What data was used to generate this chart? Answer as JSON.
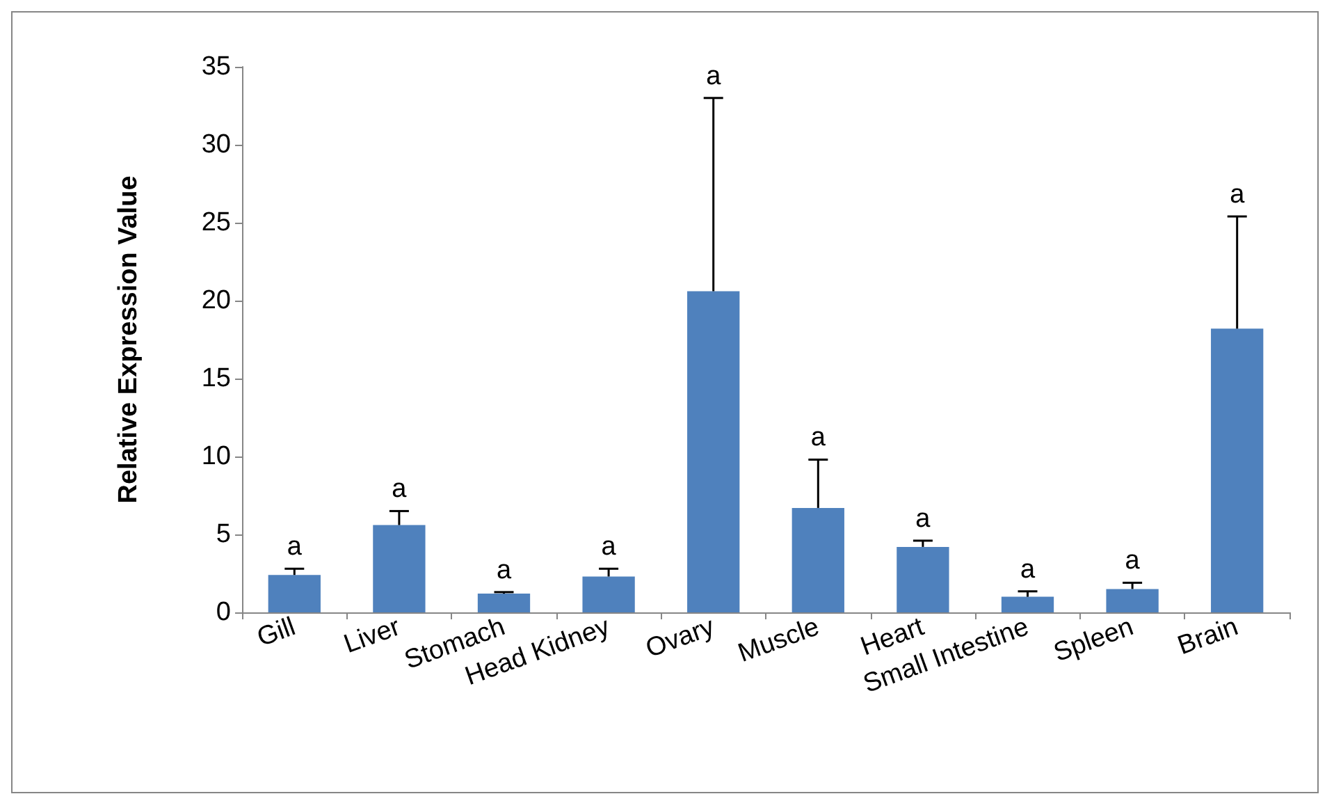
{
  "chart_data": {
    "type": "bar",
    "ylabel": "Relative Expression Value",
    "categories": [
      "Gill",
      "Liver",
      "Stomach",
      "Head Kidney",
      "Ovary",
      "Muscle",
      "Heart",
      "Small Intestine",
      "Spleen",
      "Brain"
    ],
    "values": [
      2.4,
      5.6,
      1.2,
      2.3,
      20.6,
      6.7,
      4.2,
      1.0,
      1.5,
      18.2
    ],
    "errors": [
      [
        2.4,
        2.8
      ],
      [
        5.6,
        6.5
      ],
      [
        1.2,
        1.3
      ],
      [
        2.3,
        2.8
      ],
      [
        20.6,
        33.0
      ],
      [
        6.7,
        9.8
      ],
      [
        4.2,
        4.6
      ],
      [
        1.0,
        1.35
      ],
      [
        1.5,
        1.9
      ],
      [
        18.2,
        25.4
      ]
    ],
    "color": "#4f81bd",
    "ylim": [
      0,
      35
    ],
    "yticks": [
      0,
      5,
      10,
      15,
      20,
      25,
      30,
      35
    ],
    "grid": false,
    "annotations": [
      {
        "text": "a",
        "x": "Gill",
        "y": 2.8
      },
      {
        "text": "a",
        "x": "Liver",
        "y": 6.5
      },
      {
        "text": "a",
        "x": "Stomach",
        "y": 1.3
      },
      {
        "text": "a",
        "x": "Head Kidney",
        "y": 2.8
      },
      {
        "text": "a",
        "x": "Ovary",
        "y": 33.0
      },
      {
        "text": "a",
        "x": "Muscle",
        "y": 9.8
      },
      {
        "text": "a",
        "x": "Heart",
        "y": 4.6
      },
      {
        "text": "a",
        "x": "Small Intestine",
        "y": 1.35
      },
      {
        "text": "a",
        "x": "Spleen",
        "y": 1.9
      },
      {
        "text": "a",
        "x": "Brain",
        "y": 25.4
      }
    ]
  }
}
